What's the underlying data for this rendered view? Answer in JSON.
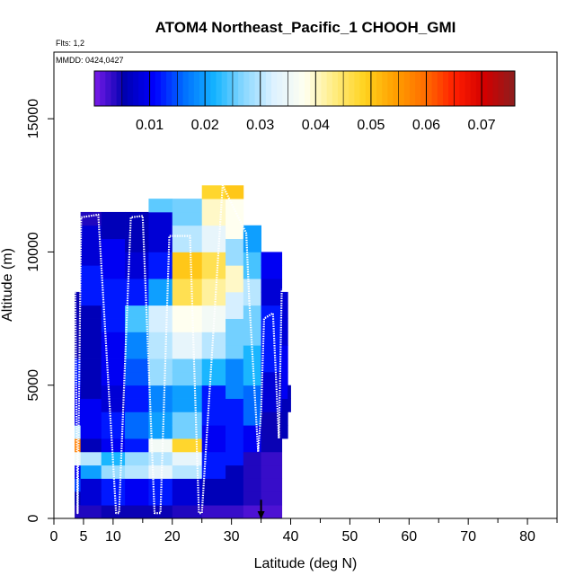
{
  "chart_data": {
    "type": "heatmap",
    "title": "ATOM4 Northeast_Pacific_1 CHOOH_GMI",
    "flights_note": "Flts: 1,2",
    "dates_note": "MMDD: 0424,0427",
    "xlabel": "Latitude (deg N)",
    "ylabel": "Altitude (m)",
    "xlim": [
      0,
      85
    ],
    "ylim": [
      0,
      17500
    ],
    "x_ticks_major": [
      0,
      5,
      10,
      20,
      30,
      40,
      50,
      60,
      70,
      80
    ],
    "x_ticks_minor": [
      15,
      25,
      35,
      45,
      55,
      65,
      75,
      85
    ],
    "y_ticks": [
      0,
      5000,
      10000,
      15000
    ],
    "colorbar": {
      "min": 0.0,
      "max": 0.076,
      "ticks": [
        0.01,
        0.02,
        0.03,
        0.04,
        0.05,
        0.06,
        0.07
      ],
      "colors": [
        "#7a1ce8",
        "#0000b0",
        "#0000ff",
        "#0070ff",
        "#14b4ff",
        "#8cd8ff",
        "#dff2ff",
        "#fffff0",
        "#ffec80",
        "#ffd21e",
        "#ffa000",
        "#ff6e00",
        "#ff1e00",
        "#d20000",
        "#8c1e1e"
      ]
    },
    "heatmap": {
      "altitude_bin_m": 500,
      "columns": [
        {
          "lat": [
            3.5,
            4.5
          ],
          "rows": [
            [
              5000,
              6000,
              0.012
            ],
            [
              6000,
              8500,
              0.005
            ],
            [
              1000,
              1500,
              0.014
            ],
            [
              1500,
              2000,
              0.01
            ],
            [
              2000,
              2500,
              0.035
            ],
            [
              2500,
              3000,
              0.058
            ],
            [
              3000,
              3500,
              0.03
            ],
            [
              3500,
              5000,
              0.01
            ],
            [
              500,
              1000,
              0.006
            ],
            [
              0,
              500,
              0.004
            ]
          ]
        },
        {
          "lat": [
            4.5,
            8
          ],
          "rows": [
            [
              0,
              500,
              0.004
            ],
            [
              500,
              1500,
              0.008
            ],
            [
              1500,
              2000,
              0.02
            ],
            [
              2000,
              2500,
              0.03
            ],
            [
              2500,
              3000,
              0.006
            ],
            [
              3000,
              4500,
              0.01
            ],
            [
              4500,
              8000,
              0.006
            ],
            [
              8000,
              9500,
              0.012
            ],
            [
              9500,
              11000,
              0.008
            ],
            [
              11000,
              11500,
              0.004
            ]
          ]
        },
        {
          "lat": [
            8,
            12
          ],
          "rows": [
            [
              0,
              500,
              0.005
            ],
            [
              500,
              1500,
              0.012
            ],
            [
              1500,
              2000,
              0.028
            ],
            [
              2000,
              2500,
              0.022
            ],
            [
              2500,
              3000,
              0.01
            ],
            [
              3000,
              4000,
              0.012
            ],
            [
              4000,
              5000,
              0.008
            ],
            [
              5000,
              7000,
              0.01
            ],
            [
              7000,
              9000,
              0.012
            ],
            [
              9000,
              10500,
              0.01
            ],
            [
              10500,
              11500,
              0.006
            ]
          ]
        },
        {
          "lat": [
            12,
            16
          ],
          "rows": [
            [
              0,
              500,
              0.005
            ],
            [
              500,
              1500,
              0.01
            ],
            [
              1500,
              2000,
              0.03
            ],
            [
              2000,
              2500,
              0.028
            ],
            [
              2500,
              3000,
              0.012
            ],
            [
              3000,
              4000,
              0.016
            ],
            [
              4000,
              5000,
              0.012
            ],
            [
              5000,
              6000,
              0.015
            ],
            [
              6000,
              7000,
              0.018
            ],
            [
              7000,
              8000,
              0.024
            ],
            [
              8000,
              9000,
              0.012
            ],
            [
              9000,
              10000,
              0.008
            ],
            [
              10000,
              11500,
              0.006
            ]
          ]
        },
        {
          "lat": [
            16,
            20
          ],
          "rows": [
            [
              0,
              500,
              0.005
            ],
            [
              500,
              1500,
              0.012
            ],
            [
              1500,
              2000,
              0.034
            ],
            [
              2000,
              2500,
              0.03
            ],
            [
              2500,
              3000,
              0.036
            ],
            [
              3000,
              4000,
              0.02
            ],
            [
              4000,
              5000,
              0.018
            ],
            [
              5000,
              6000,
              0.028
            ],
            [
              6000,
              7000,
              0.03
            ],
            [
              7000,
              8000,
              0.032
            ],
            [
              8000,
              9000,
              0.02
            ],
            [
              9000,
              10000,
              0.012
            ],
            [
              10000,
              11500,
              0.008
            ],
            [
              11500,
              12000,
              0.025
            ]
          ]
        },
        {
          "lat": [
            20,
            25
          ],
          "rows": [
            [
              0,
              500,
              0.004
            ],
            [
              500,
              1500,
              0.008
            ],
            [
              1500,
              2000,
              0.03
            ],
            [
              2000,
              2500,
              0.034
            ],
            [
              2500,
              3000,
              0.048
            ],
            [
              3000,
              4000,
              0.026
            ],
            [
              4000,
              5000,
              0.02
            ],
            [
              5000,
              6000,
              0.026
            ],
            [
              6000,
              7000,
              0.034
            ],
            [
              7000,
              8000,
              0.038
            ],
            [
              8000,
              9000,
              0.046
            ],
            [
              9000,
              10000,
              0.05
            ],
            [
              10000,
              11000,
              0.03
            ],
            [
              11000,
              12000,
              0.026
            ]
          ]
        },
        {
          "lat": [
            25,
            29
          ],
          "rows": [
            [
              0,
              500,
              0.003
            ],
            [
              500,
              1500,
              0.006
            ],
            [
              1500,
              2500,
              0.012
            ],
            [
              2500,
              3500,
              0.01
            ],
            [
              3500,
              5000,
              0.012
            ],
            [
              5000,
              6000,
              0.022
            ],
            [
              6000,
              7000,
              0.03
            ],
            [
              7000,
              8000,
              0.036
            ],
            [
              8000,
              9000,
              0.042
            ],
            [
              9000,
              10000,
              0.046
            ],
            [
              10000,
              11000,
              0.034
            ],
            [
              11000,
              12000,
              0.04
            ],
            [
              12000,
              12500,
              0.048
            ]
          ]
        },
        {
          "lat": [
            29,
            32
          ],
          "rows": [
            [
              0,
              500,
              0.003
            ],
            [
              500,
              2000,
              0.006
            ],
            [
              2000,
              3000,
              0.012
            ],
            [
              3000,
              4500,
              0.012
            ],
            [
              4500,
              6000,
              0.018
            ],
            [
              6000,
              7500,
              0.026
            ],
            [
              7500,
              8500,
              0.032
            ],
            [
              8500,
              9500,
              0.04
            ],
            [
              9500,
              10500,
              0.028
            ],
            [
              10500,
              12000,
              0.038
            ],
            [
              12000,
              12500,
              0.05
            ]
          ]
        },
        {
          "lat": [
            32,
            35
          ],
          "rows": [
            [
              0,
              500,
              0.002
            ],
            [
              500,
              2500,
              0.004
            ],
            [
              2500,
              3500,
              0.01
            ],
            [
              3500,
              5000,
              0.016
            ],
            [
              5000,
              6500,
              0.022
            ],
            [
              6500,
              8000,
              0.026
            ],
            [
              8000,
              9000,
              0.03
            ],
            [
              9000,
              10000,
              0.024
            ],
            [
              10000,
              11000,
              0.02
            ]
          ]
        },
        {
          "lat": [
            35,
            38.5
          ],
          "rows": [
            [
              0,
              500,
              0.002
            ],
            [
              500,
              2500,
              0.003
            ],
            [
              2500,
              4000,
              0.005
            ],
            [
              4000,
              5500,
              0.008
            ],
            [
              5500,
              7000,
              0.012
            ],
            [
              7000,
              8000,
              0.012
            ],
            [
              8000,
              9000,
              0.008
            ],
            [
              9000,
              10000,
              0.01
            ]
          ]
        },
        {
          "lat": [
            38.5,
            39.5
          ],
          "rows": [
            [
              3000,
              4500,
              0.006
            ],
            [
              4500,
              6500,
              0.01
            ],
            [
              6500,
              8500,
              0.008
            ]
          ]
        },
        {
          "lat": [
            39.5,
            40
          ],
          "rows": [
            [
              4000,
              5000,
              0.006
            ]
          ]
        }
      ]
    },
    "flight_track": {
      "points": [
        [
          3.5,
          11400
        ],
        [
          3.7,
          6000
        ],
        [
          4.0,
          200
        ],
        [
          4.6,
          11300
        ],
        [
          7.5,
          11400
        ],
        [
          10.5,
          200
        ],
        [
          11.0,
          200
        ],
        [
          13.0,
          11300
        ],
        [
          15.0,
          11350
        ],
        [
          17.0,
          200
        ],
        [
          18.0,
          200
        ],
        [
          19.5,
          10600
        ],
        [
          23.0,
          10600
        ],
        [
          24.5,
          200
        ],
        [
          25.0,
          200
        ],
        [
          28.5,
          12500
        ],
        [
          32.5,
          10700
        ],
        [
          33.0,
          8200
        ],
        [
          34.5,
          2500
        ],
        [
          35.0,
          4000
        ],
        [
          35.5,
          7500
        ],
        [
          37.0,
          7700
        ],
        [
          38.0,
          3000
        ],
        [
          38.5,
          8600
        ]
      ],
      "color": "#ffffff"
    },
    "marker_arrow": {
      "lat": 35,
      "alt_top": 700,
      "alt_bottom": 0
    }
  }
}
